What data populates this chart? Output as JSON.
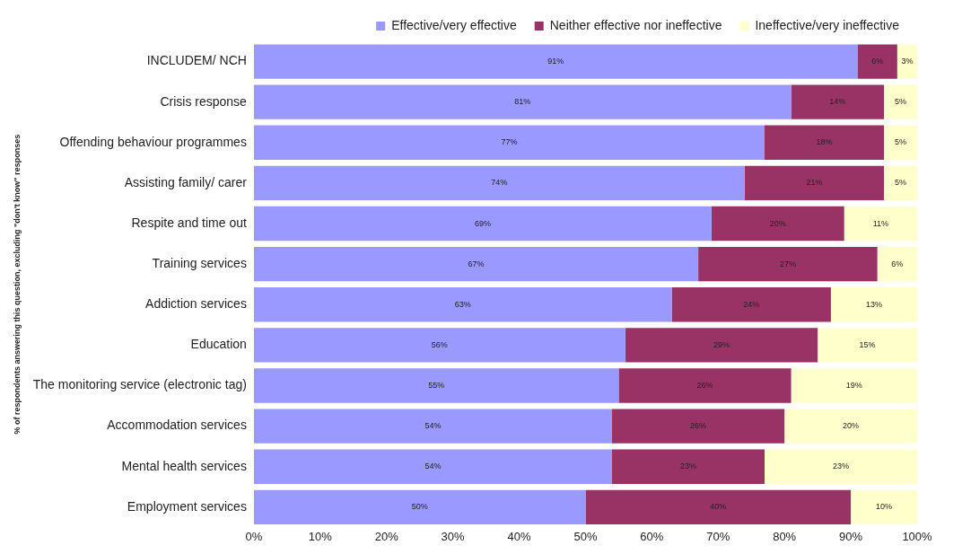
{
  "chart_data": {
    "type": "bar",
    "orientation": "horizontal",
    "stacked": true,
    "ylabel": "% of respondents answering this question, excluding \"don't know\" responses",
    "categories": [
      "INCLUDEM/ NCH",
      "Crisis response",
      "Offending behaviour programmes",
      "Assisting family/ carer",
      "Respite and time out",
      "Training services",
      "Addiction services",
      "Education",
      "The monitoring service (electronic tag)",
      "Accommodation services",
      "Mental health services",
      "Employment services"
    ],
    "series": [
      {
        "name": "Effective/very effective",
        "color": "#9999ff",
        "values": [
          91,
          81,
          77,
          74,
          69,
          67,
          63,
          56,
          55,
          54,
          54,
          50
        ],
        "value_labels": [
          "91%",
          "81%",
          "77%",
          "74%",
          "69%",
          "67%",
          "63%",
          "56%",
          "55%",
          "54%",
          "54%",
          "50%"
        ]
      },
      {
        "name": "Neither effective nor ineffective",
        "color": "#993366",
        "values": [
          6,
          14,
          18,
          21,
          20,
          27,
          24,
          29,
          26,
          26,
          23,
          40
        ],
        "value_labels": [
          "6%",
          "14%",
          "18%",
          "21%",
          "20%",
          "27%",
          "24%",
          "29%",
          "26%",
          "26%",
          "23%",
          "40%"
        ]
      },
      {
        "name": "Ineffective/very ineffective",
        "color": "#ffffcc",
        "values": [
          3,
          5,
          5,
          5,
          11,
          6,
          13,
          15,
          19,
          20,
          23,
          10
        ],
        "value_labels": [
          "3%",
          "5%",
          "5%",
          "5%",
          "11%",
          "6%",
          "13%",
          "15%",
          "19%",
          "20%",
          "23%",
          "10%"
        ]
      }
    ],
    "xlim": [
      0,
      100
    ],
    "xticks": [
      {
        "value": 0,
        "label": "0%"
      },
      {
        "value": 10,
        "label": "10%"
      },
      {
        "value": 20,
        "label": "20%"
      },
      {
        "value": 30,
        "label": "30%"
      },
      {
        "value": 40,
        "label": "40%"
      },
      {
        "value": 50,
        "label": "50%"
      },
      {
        "value": 60,
        "label": "60%"
      },
      {
        "value": 70,
        "label": "70%"
      },
      {
        "value": 80,
        "label": "80%"
      },
      {
        "value": 90,
        "label": "90%"
      },
      {
        "value": 100,
        "label": "100%"
      }
    ],
    "grid": false,
    "legend": "top right"
  }
}
